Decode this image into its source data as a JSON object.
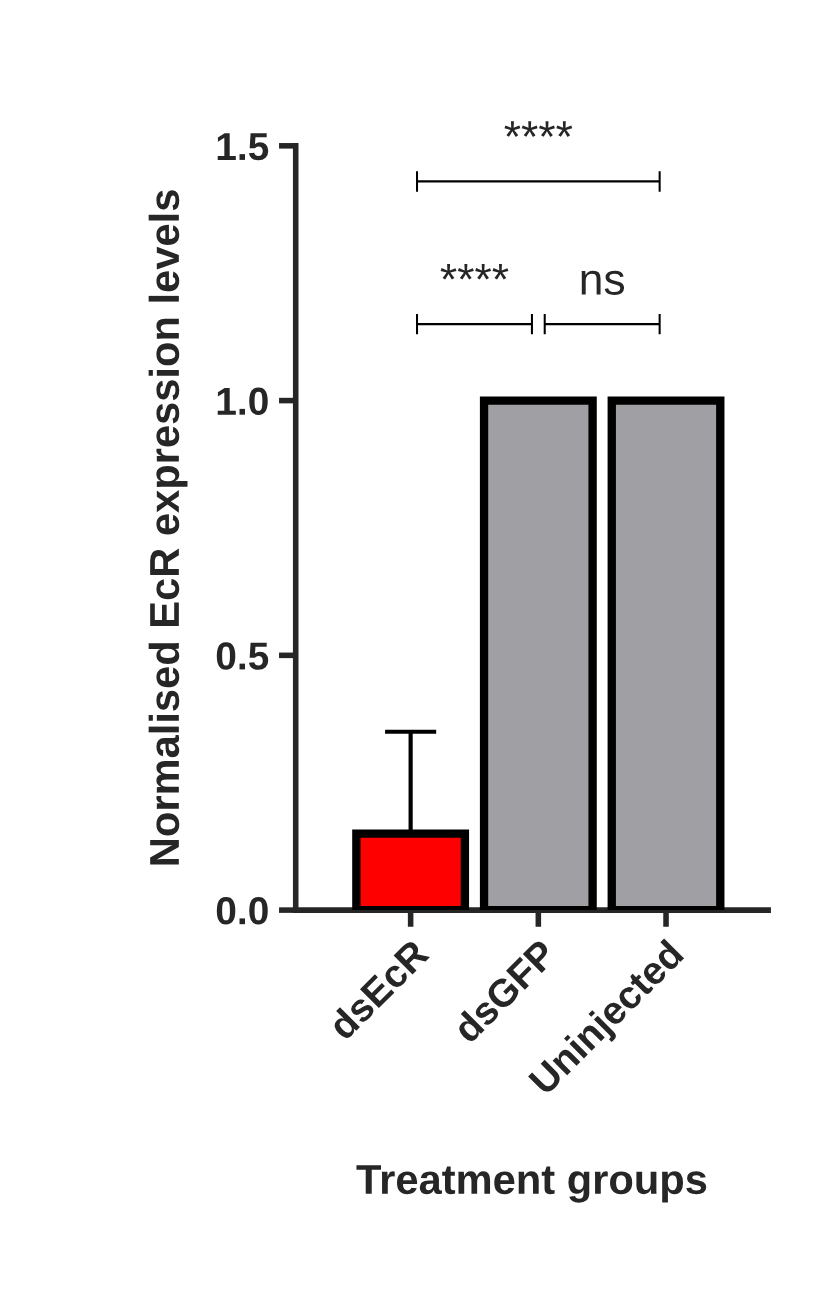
{
  "chart_data": {
    "type": "bar",
    "categories": [
      "dsEcR",
      "dsGFP",
      "Uninjected"
    ],
    "values": [
      0.15,
      1.0,
      1.0
    ],
    "colors": [
      "#ff0000",
      "#a0a0a4",
      "#a0a0a4"
    ],
    "errors": [
      [
        0.15,
        0.35
      ],
      null,
      null
    ],
    "ylim": [
      0,
      1.5
    ],
    "yticks": [
      {
        "value": 0,
        "label": "0.0"
      },
      {
        "value": 0.5,
        "label": "0.5"
      },
      {
        "value": 1.0,
        "label": "1.0"
      },
      {
        "value": 1.5,
        "label": "1.5"
      }
    ],
    "xlabel": "Treatment groups",
    "ylabel": "Normalised EcR expression levels",
    "annotations": [
      "****",
      "****",
      "ns"
    ],
    "grid": false
  }
}
